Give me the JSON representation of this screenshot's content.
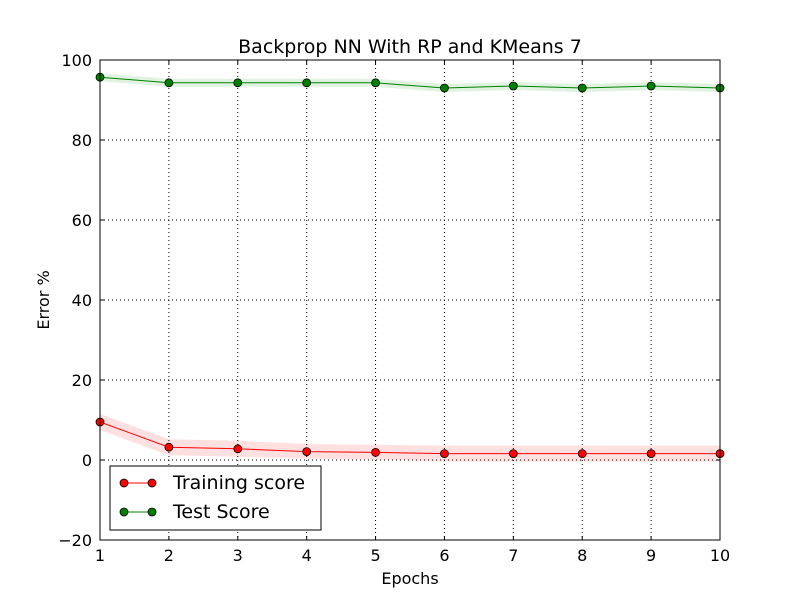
{
  "chart_data": {
    "type": "line",
    "title": "Backprop NN With RP and KMeans 7",
    "xlabel": "Epochs",
    "ylabel": "Error %",
    "xlim": [
      1,
      10
    ],
    "ylim": [
      -20,
      100
    ],
    "x": [
      1,
      2,
      3,
      4,
      5,
      6,
      7,
      8,
      9,
      10
    ],
    "xticks": [
      "1",
      "2",
      "3",
      "4",
      "5",
      "6",
      "7",
      "8",
      "9",
      "10"
    ],
    "yticks": [
      "−20",
      "0",
      "20",
      "40",
      "60",
      "80",
      "100"
    ],
    "ytick_values": [
      -20,
      0,
      20,
      40,
      60,
      80,
      100
    ],
    "grid": true,
    "legend_position": "bottom-left",
    "series": [
      {
        "name": "Training score",
        "color": "#ff0000",
        "fill_color": "#ff0000",
        "values": [
          9.5,
          3.2,
          2.8,
          2.1,
          1.9,
          1.6,
          1.6,
          1.6,
          1.6,
          1.6
        ],
        "band_low": [
          7.5,
          1.2,
          0.8,
          0.3,
          0.1,
          -0.4,
          -0.4,
          -0.4,
          -0.4,
          -0.4
        ],
        "band_high": [
          11.5,
          5.2,
          4.8,
          4.0,
          3.8,
          3.6,
          3.6,
          3.6,
          3.6,
          3.6
        ]
      },
      {
        "name": "Test Score",
        "color": "#008000",
        "fill_color": "#00a000",
        "values": [
          95.7,
          94.3,
          94.3,
          94.3,
          94.3,
          93.0,
          93.5,
          93.0,
          93.5,
          93.0
        ],
        "band_low": [
          94.7,
          93.3,
          93.3,
          93.3,
          93.3,
          92.0,
          92.5,
          92.0,
          92.5,
          92.0
        ],
        "band_high": [
          96.7,
          95.3,
          95.3,
          95.3,
          95.3,
          94.0,
          94.5,
          94.0,
          94.5,
          94.0
        ]
      }
    ]
  }
}
